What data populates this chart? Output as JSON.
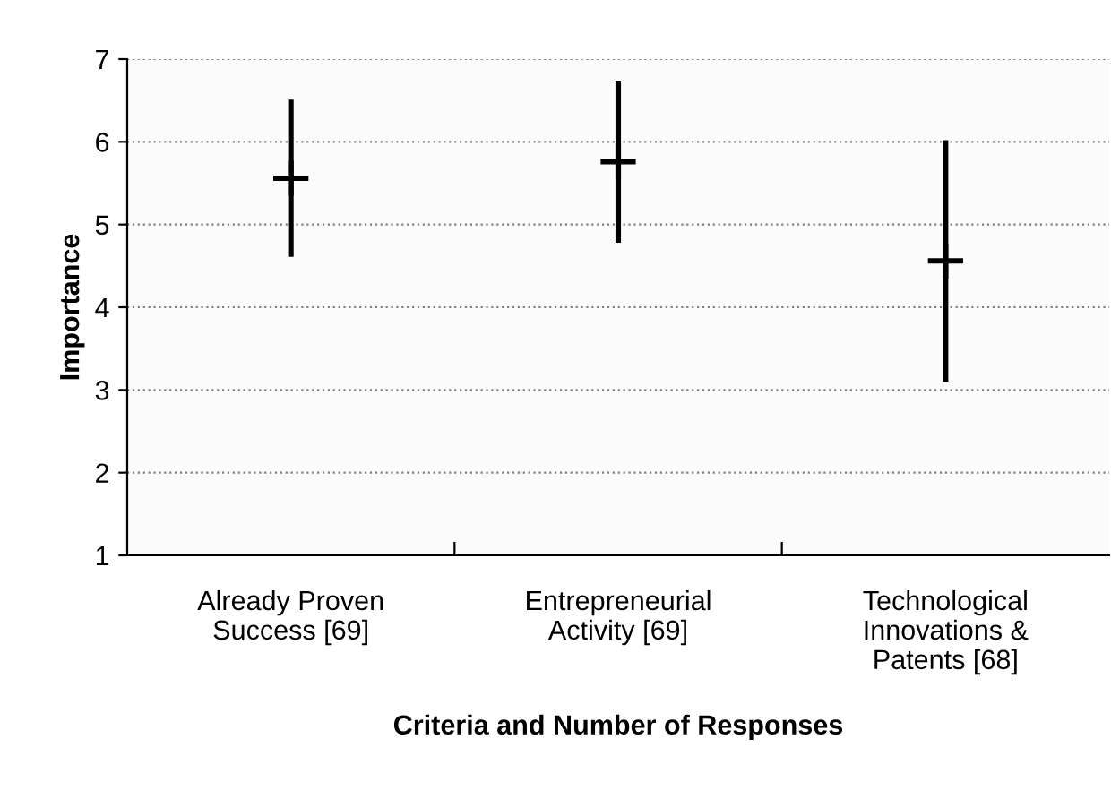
{
  "chart_data": {
    "type": "scatter",
    "categories": [
      "Already Proven\nSuccess [69]",
      "Entrepreneurial\nActivity [69]",
      "Technological\nInnovations &\nPatents [68]"
    ],
    "series": [
      {
        "color": "#000000",
        "values": [
          5.56,
          5.76,
          4.56
        ],
        "errors": [
          0.95,
          0.98,
          1.46
        ]
      }
    ],
    "marker": "cross",
    "xlabel": "Criteria and Number of Responses",
    "ylabel": "Importance",
    "ylim": [
      1,
      7
    ],
    "yticks": [
      1,
      2,
      3,
      4,
      5,
      6,
      7
    ],
    "grid": "y"
  }
}
